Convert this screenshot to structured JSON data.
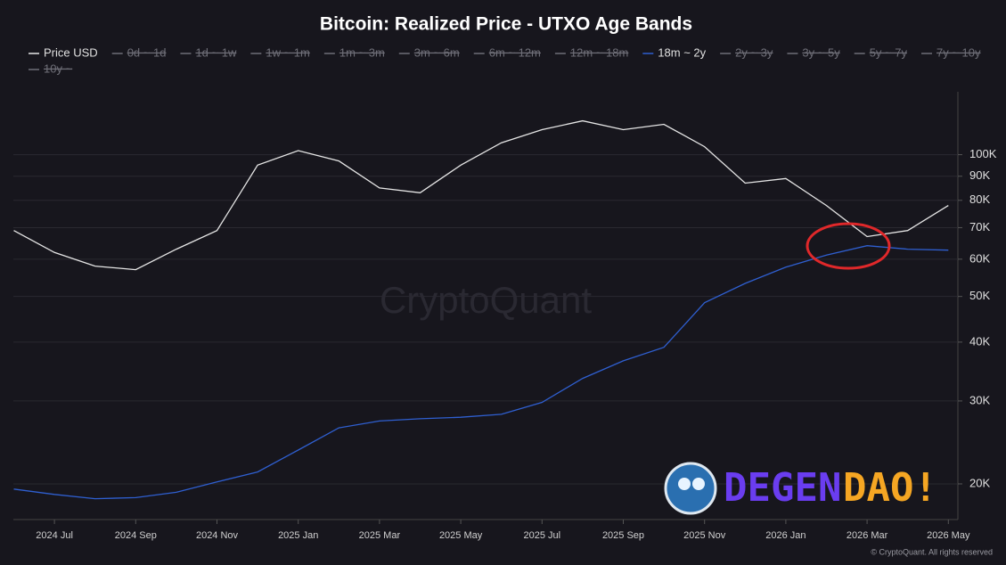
{
  "chart_data": {
    "type": "line",
    "title": "Bitcoin: Realized Price - UTXO Age Bands",
    "x": [
      null,
      "2024 Jul",
      null,
      "2024 Sep",
      null,
      "2024 Nov",
      null,
      "2025 Jan",
      null,
      "2025 Mar",
      null,
      "2025 May",
      null,
      "2025 Jul",
      null,
      "2025 Sep",
      null,
      "2025 Nov",
      null,
      "2026 Jan",
      null,
      "2026 Mar",
      null,
      "2026 May"
    ],
    "series": [
      {
        "name": "Price USD",
        "color": "#e6e6e6",
        "values": [
          69000,
          62000,
          58000,
          57000,
          63000,
          69000,
          95000,
          102000,
          97000,
          85000,
          83000,
          95000,
          106000,
          113000,
          118000,
          113000,
          116000,
          104000,
          87000,
          89000,
          78000,
          67000,
          69000,
          78000
        ]
      },
      {
        "name": "18m ~ 2y",
        "color": "#2f5fd0",
        "values": [
          19500,
          19000,
          18600,
          18700,
          19200,
          20200,
          21200,
          23600,
          26300,
          27200,
          27500,
          27700,
          28100,
          29800,
          33500,
          36500,
          39000,
          48500,
          53300,
          57700,
          61200,
          64100,
          63000,
          62700
        ]
      }
    ],
    "legend": [
      {
        "series": 0
      },
      {
        "name": "0d ~ 1d",
        "hidden": true
      },
      {
        "name": "1d ~ 1w",
        "hidden": true
      },
      {
        "name": "1w ~ 1m",
        "hidden": true
      },
      {
        "name": "1m ~ 3m",
        "hidden": true
      },
      {
        "name": "3m ~ 6m",
        "hidden": true
      },
      {
        "name": "6m ~ 12m",
        "hidden": true
      },
      {
        "name": "12m ~ 18m",
        "hidden": true
      },
      {
        "series": 1
      },
      {
        "name": "2y ~ 3y",
        "hidden": true
      },
      {
        "name": "3y ~ 5y",
        "hidden": true
      },
      {
        "name": "5y ~ 7y",
        "hidden": true
      },
      {
        "name": "7y ~ 10y",
        "hidden": true
      },
      {
        "name": "10y ~",
        "hidden": true
      }
    ],
    "log_scale": true,
    "ylim": [
      16800,
      136000
    ],
    "yticks": [
      {
        "value": 20000,
        "label": "20K"
      },
      {
        "value": 30000,
        "label": "30K"
      },
      {
        "value": 40000,
        "label": "40K"
      },
      {
        "value": 50000,
        "label": "50K"
      },
      {
        "value": 60000,
        "label": "60K"
      },
      {
        "value": 70000,
        "label": "70K"
      },
      {
        "value": 80000,
        "label": "80K"
      },
      {
        "value": 90000,
        "label": "90K"
      },
      {
        "value": 100000,
        "label": "100K"
      }
    ],
    "grid": true,
    "watermark": "CryptoQuant",
    "logo": [
      "DEGEN",
      "DAO!"
    ],
    "copyright": "© CryptoQuant. All rights reserved"
  }
}
